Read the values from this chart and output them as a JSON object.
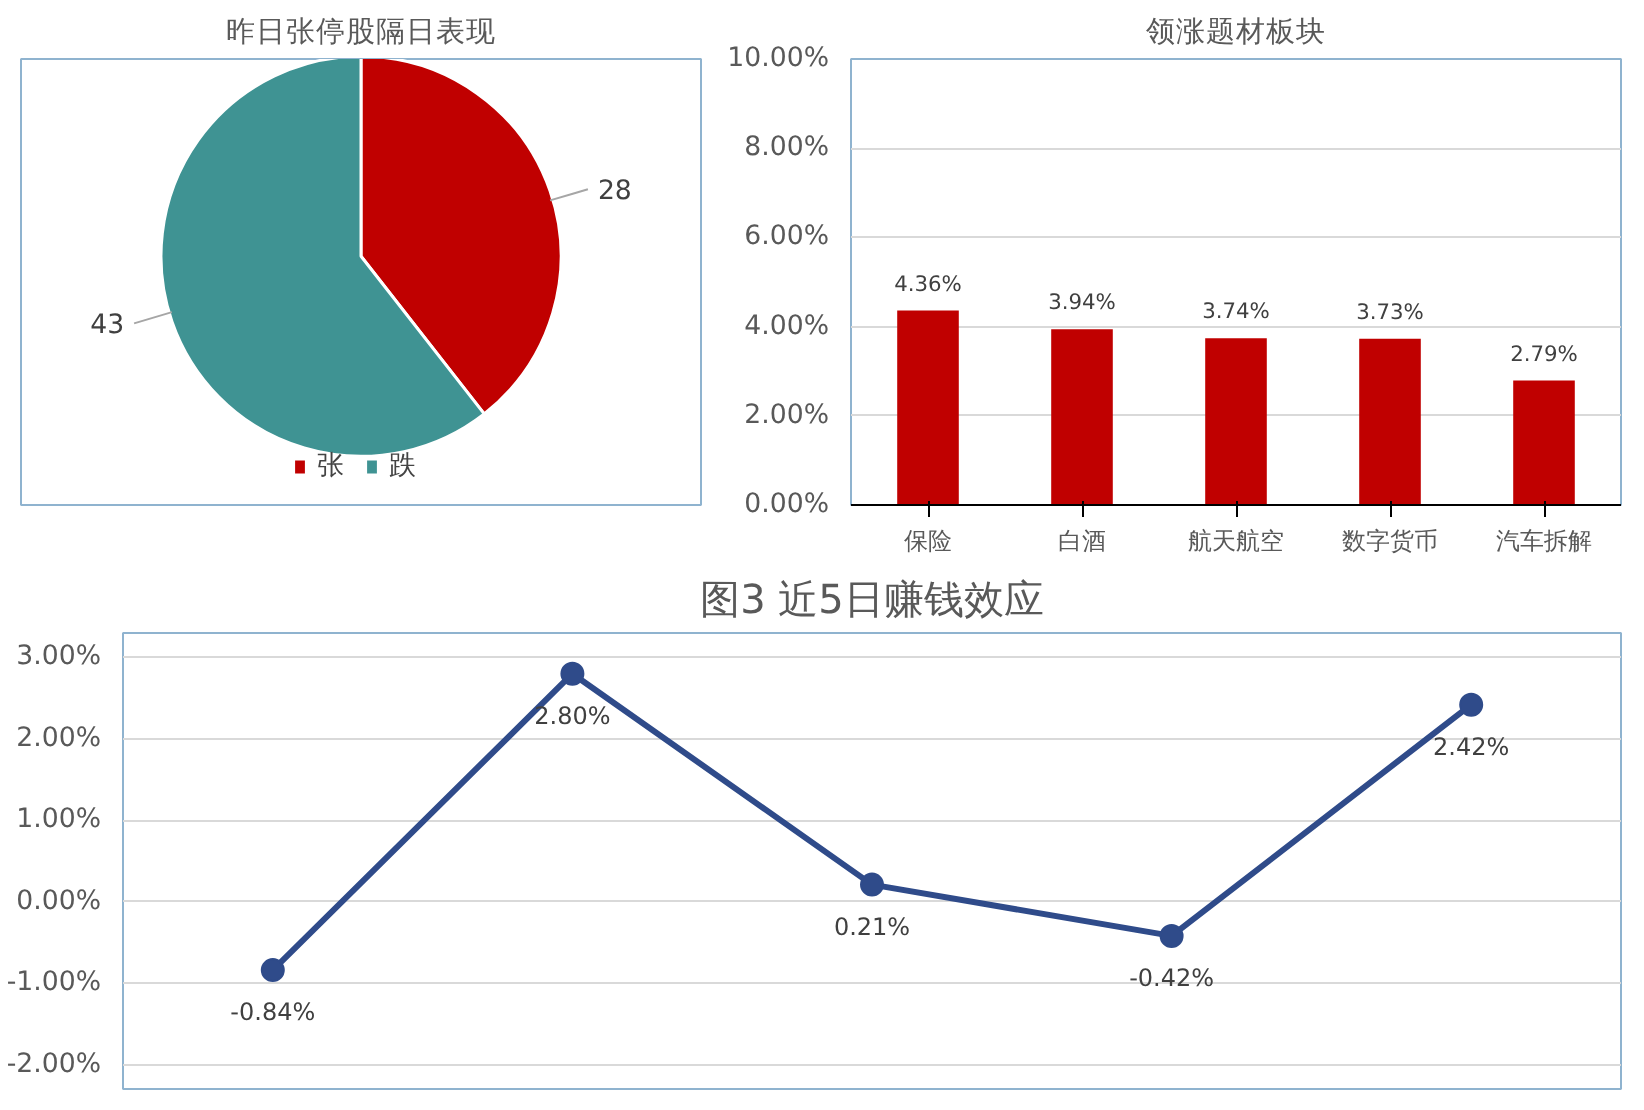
{
  "chart_data": [
    {
      "type": "pie",
      "title": "昨日张停股隔日表现",
      "categories": [
        "张",
        "跌"
      ],
      "values": [
        28,
        43
      ],
      "colors": [
        "#c00000",
        "#3f9393"
      ],
      "data_labels": true,
      "legend": "bottom"
    },
    {
      "type": "bar",
      "title": "领涨题材板块",
      "categories": [
        "保险",
        "白酒",
        "航天航空",
        "数字货币",
        "汽车拆解"
      ],
      "values": [
        4.36,
        3.94,
        3.74,
        3.73,
        2.79
      ],
      "value_labels": [
        "4.36%",
        "3.94%",
        "3.74%",
        "3.73%",
        "2.79%"
      ],
      "color": "#c00000",
      "ylim": [
        0,
        10
      ],
      "yticks": [
        {
          "value": 0,
          "label": "0.00%"
        },
        {
          "value": 2,
          "label": "2.00%"
        },
        {
          "value": 4,
          "label": "4.00%"
        },
        {
          "value": 6,
          "label": "6.00%"
        },
        {
          "value": 8,
          "label": "8.00%"
        },
        {
          "value": 10,
          "label": "10.00%"
        }
      ],
      "grid": "y"
    },
    {
      "type": "line",
      "title": "图3 近5日赚钱效应",
      "categories": [
        null,
        null,
        null,
        null,
        null
      ],
      "values": [
        -0.84,
        2.8,
        0.21,
        -0.42,
        2.42
      ],
      "value_labels": [
        "-0.84%",
        "2.80%",
        "0.21%",
        "-0.42%",
        "2.42%"
      ],
      "color": "#2f4b8a",
      "marker": "circle",
      "line_style": "solid",
      "ylim": [
        -2.3,
        3.3
      ],
      "yticks": [
        {
          "value": -2,
          "label": "-2.00%"
        },
        {
          "value": -1,
          "label": "-1.00%"
        },
        {
          "value": 0,
          "label": "0.00%"
        },
        {
          "value": 1,
          "label": "1.00%"
        },
        {
          "value": 2,
          "label": "2.00%"
        },
        {
          "value": 3,
          "label": "3.00%"
        }
      ],
      "grid": "y",
      "tick_labels": "y"
    }
  ]
}
